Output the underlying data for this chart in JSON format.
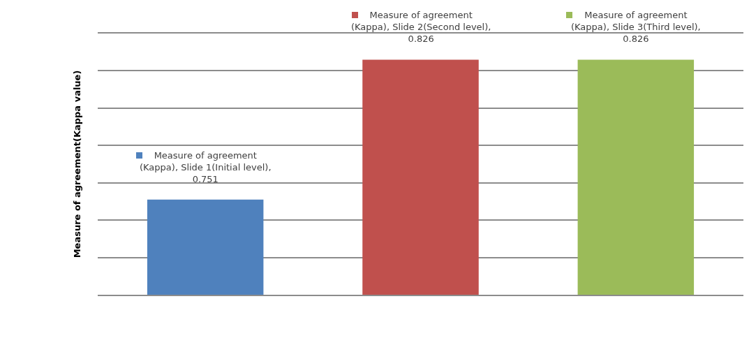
{
  "chart_data": {
    "type": "bar",
    "ylabel": "Measure of agreement(Kappa value)",
    "categories": [
      null,
      null,
      null
    ],
    "values": [
      0.751,
      0.826,
      0.826
    ],
    "colors": [
      "#4f81bd",
      "#c0504d",
      "#9bbb59"
    ],
    "value_labels": [
      "Measure of agreement (Kappa), Slide 1(Initial level), 0.751",
      "Measure of agreement (Kappa), Slide 2(Second level), 0.826",
      "Measure of agreement (Kappa), Slide 3(Third level), 0.826"
    ],
    "ylim": [
      0.7,
      0.84
    ],
    "tick_labels": false,
    "grid": "y"
  }
}
